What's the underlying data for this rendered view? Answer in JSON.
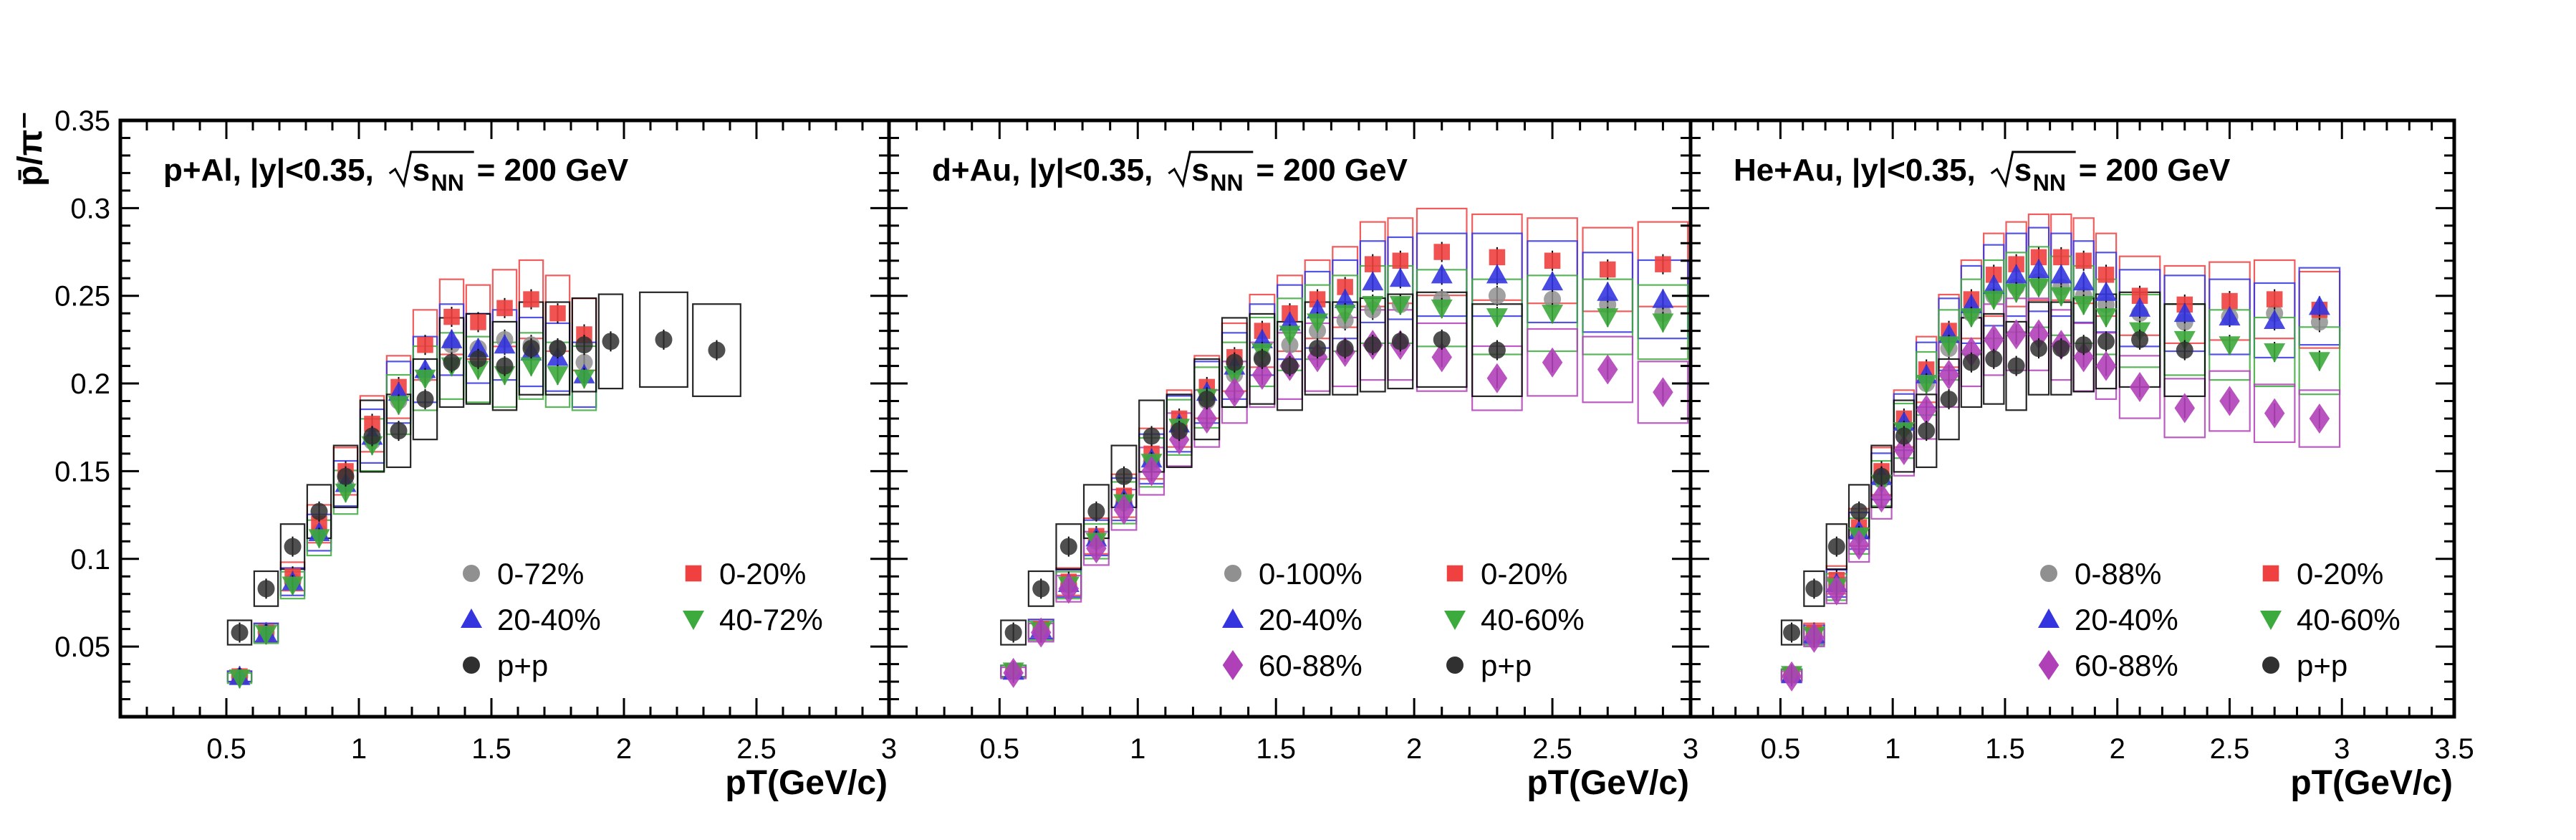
{
  "chart_data": {
    "type": "scatter",
    "ylabel": "p̄/π⁻",
    "xlabel": "pT(GeV/c)",
    "ylim": [
      0.01,
      0.35
    ],
    "yticks": [
      "0.05",
      "0.1",
      "0.15",
      "0.2",
      "0.25",
      "0.3",
      "0.35"
    ],
    "xticks": [
      "0.5",
      "1",
      "1.5",
      "2",
      "2.5",
      "3",
      "3.5"
    ],
    "xtick_labels_cut": [
      "0.5",
      "1",
      "1.5",
      "2",
      "2.5",
      "3",
      "3."
    ],
    "colors": {
      "red": "#f0403f",
      "blue": "#3535e0",
      "green": "#3caa3c",
      "magenta": "#b040b8",
      "black": "#303030",
      "gray": "#909090"
    },
    "panels": [
      {
        "title_prefix": "p+Al, |y|<0.35,",
        "title_s": "s",
        "title_sub": "NN",
        "title_suffix": "= 200 GeV",
        "xlim": [
          0.1,
          3.0
        ],
        "series": [
          {
            "name": "0-72%",
            "marker": "circle",
            "color": "gray",
            "x": [
              0.55,
              0.65,
              0.75,
              0.85,
              0.95,
              1.05,
              1.15,
              1.25,
              1.35,
              1.45,
              1.55,
              1.65,
              1.75,
              1.85
            ],
            "y": [
              0.033,
              0.058,
              0.087,
              0.115,
              0.142,
              0.167,
              0.19,
              0.205,
              0.222,
              0.22,
              0.225,
              0.222,
              0.22,
              0.212
            ]
          },
          {
            "name": "0-20%",
            "marker": "square",
            "color": "red",
            "x": [
              0.55,
              0.65,
              0.75,
              0.85,
              0.95,
              1.05,
              1.15,
              1.25,
              1.35,
              1.45,
              1.55,
              1.65,
              1.75,
              1.85
            ],
            "y": [
              0.033,
              0.058,
              0.09,
              0.12,
              0.15,
              0.177,
              0.198,
              0.222,
              0.238,
              0.235,
              0.243,
              0.248,
              0.24,
              0.228
            ]
          },
          {
            "name": "20-40%",
            "marker": "triangle-up",
            "color": "blue",
            "x": [
              0.55,
              0.65,
              0.75,
              0.85,
              0.95,
              1.05,
              1.15,
              1.25,
              1.35,
              1.45,
              1.55,
              1.65,
              1.75,
              1.85
            ],
            "y": [
              0.033,
              0.058,
              0.087,
              0.115,
              0.143,
              0.17,
              0.195,
              0.208,
              0.225,
              0.22,
              0.222,
              0.218,
              0.215,
              0.205
            ]
          },
          {
            "name": "40-72%",
            "marker": "triangle-down",
            "color": "green",
            "x": [
              0.55,
              0.65,
              0.75,
              0.85,
              0.95,
              1.05,
              1.15,
              1.25,
              1.35,
              1.45,
              1.55,
              1.65,
              1.75,
              1.85
            ],
            "y": [
              0.032,
              0.057,
              0.085,
              0.112,
              0.138,
              0.165,
              0.188,
              0.203,
              0.21,
              0.208,
              0.205,
              0.21,
              0.205,
              0.203
            ]
          },
          {
            "name": "p+p",
            "marker": "circle",
            "color": "black",
            "x": [
              0.55,
              0.65,
              0.75,
              0.85,
              0.95,
              1.05,
              1.15,
              1.25,
              1.35,
              1.45,
              1.55,
              1.65,
              1.75,
              1.85,
              1.95,
              2.15,
              2.35
            ],
            "y": [
              0.058,
              0.083,
              0.107,
              0.127,
              0.147,
              0.17,
              0.173,
              0.191,
              0.212,
              0.214,
              0.21,
              0.22,
              0.22,
              0.222,
              0.224,
              0.225,
              0.219
            ]
          }
        ],
        "legend": [
          [
            "0-72%",
            "0-20%"
          ],
          [
            "20-40%",
            "40-72%"
          ],
          [
            "p+p",
            ""
          ]
        ]
      },
      {
        "title_prefix": "d+Au, |y|<0.35,",
        "title_s": "s",
        "title_sub": "NN",
        "title_suffix": "= 200 GeV",
        "xlim": [
          0.1,
          3.0
        ],
        "series": [
          {
            "name": "0-100%",
            "marker": "circle",
            "color": "gray",
            "x": [
              0.55,
              0.65,
              0.75,
              0.85,
              0.95,
              1.05,
              1.15,
              1.25,
              1.35,
              1.45,
              1.55,
              1.65,
              1.75,
              1.85,
              1.95,
              2.1,
              2.3,
              2.5,
              2.7,
              2.9
            ],
            "y": [
              0.036,
              0.06,
              0.085,
              0.11,
              0.132,
              0.155,
              0.175,
              0.19,
              0.205,
              0.215,
              0.222,
              0.23,
              0.236,
              0.242,
              0.245,
              0.248,
              0.25,
              0.248,
              0.245,
              0.24
            ]
          },
          {
            "name": "0-20%",
            "marker": "square",
            "color": "red",
            "x": [
              0.55,
              0.65,
              0.75,
              0.85,
              0.95,
              1.05,
              1.15,
              1.25,
              1.35,
              1.45,
              1.55,
              1.65,
              1.75,
              1.85,
              1.95,
              2.1,
              2.3,
              2.5,
              2.7,
              2.9
            ],
            "y": [
              0.036,
              0.06,
              0.087,
              0.113,
              0.136,
              0.16,
              0.18,
              0.198,
              0.215,
              0.23,
              0.24,
              0.248,
              0.255,
              0.268,
              0.27,
              0.275,
              0.272,
              0.27,
              0.265,
              0.268
            ]
          },
          {
            "name": "20-40%",
            "marker": "triangle-up",
            "color": "blue",
            "x": [
              0.55,
              0.65,
              0.75,
              0.85,
              0.95,
              1.05,
              1.15,
              1.25,
              1.35,
              1.45,
              1.55,
              1.65,
              1.75,
              1.85,
              1.95,
              2.1,
              2.3,
              2.5,
              2.7,
              2.9
            ],
            "y": [
              0.036,
              0.06,
              0.086,
              0.112,
              0.134,
              0.157,
              0.177,
              0.195,
              0.21,
              0.225,
              0.235,
              0.242,
              0.248,
              0.258,
              0.26,
              0.262,
              0.262,
              0.258,
              0.252,
              0.248
            ]
          },
          {
            "name": "40-60%",
            "marker": "triangle-down",
            "color": "green",
            "x": [
              0.55,
              0.65,
              0.75,
              0.85,
              0.95,
              1.05,
              1.15,
              1.25,
              1.35,
              1.45,
              1.55,
              1.65,
              1.75,
              1.85,
              1.95,
              2.1,
              2.3,
              2.5,
              2.7,
              2.9
            ],
            "y": [
              0.036,
              0.059,
              0.085,
              0.11,
              0.132,
              0.155,
              0.175,
              0.192,
              0.205,
              0.218,
              0.228,
              0.235,
              0.24,
              0.245,
              0.245,
              0.243,
              0.238,
              0.24,
              0.238,
              0.235
            ]
          },
          {
            "name": "60-88%",
            "marker": "diamond",
            "color": "magenta",
            "x": [
              0.55,
              0.65,
              0.75,
              0.85,
              0.95,
              1.05,
              1.15,
              1.25,
              1.35,
              1.45,
              1.55,
              1.65,
              1.75,
              1.85,
              1.95,
              2.1,
              2.3,
              2.5,
              2.7,
              2.9
            ],
            "y": [
              0.035,
              0.058,
              0.083,
              0.106,
              0.128,
              0.15,
              0.168,
              0.18,
              0.195,
              0.205,
              0.21,
              0.215,
              0.218,
              0.222,
              0.222,
              0.215,
              0.203,
              0.212,
              0.208,
              0.195
            ]
          },
          {
            "name": "p+p",
            "marker": "circle",
            "color": "black",
            "x": [
              0.55,
              0.65,
              0.75,
              0.85,
              0.95,
              1.05,
              1.15,
              1.25,
              1.35,
              1.45,
              1.55,
              1.65,
              1.75,
              1.85,
              1.95,
              2.1,
              2.3
            ],
            "y": [
              0.058,
              0.083,
              0.107,
              0.127,
              0.147,
              0.17,
              0.173,
              0.191,
              0.212,
              0.214,
              0.21,
              0.22,
              0.22,
              0.222,
              0.224,
              0.225,
              0.219
            ]
          }
        ],
        "legend": [
          [
            "0-100%",
            "0-20%"
          ],
          [
            "20-40%",
            "40-60%"
          ],
          [
            "60-88%",
            "p+p"
          ]
        ]
      },
      {
        "title_prefix": "He+Au, |y|<0.35,",
        "title_s": "s",
        "title_sub": "NN",
        "title_suffix": "= 200 GeV",
        "xlim": [
          0.1,
          3.5
        ],
        "series": [
          {
            "name": "0-88%",
            "marker": "circle",
            "color": "gray",
            "x": [
              0.55,
              0.65,
              0.75,
              0.85,
              0.95,
              1.05,
              1.15,
              1.25,
              1.35,
              1.45,
              1.55,
              1.65,
              1.75,
              1.85,
              1.95,
              2.1,
              2.3,
              2.5,
              2.7,
              2.9
            ],
            "y": [
              0.034,
              0.057,
              0.085,
              0.115,
              0.145,
              0.175,
              0.2,
              0.22,
              0.24,
              0.25,
              0.255,
              0.258,
              0.255,
              0.25,
              0.245,
              0.24,
              0.235,
              0.238,
              0.24,
              0.235
            ]
          },
          {
            "name": "0-20%",
            "marker": "square",
            "color": "red",
            "x": [
              0.55,
              0.65,
              0.75,
              0.85,
              0.95,
              1.05,
              1.15,
              1.25,
              1.35,
              1.45,
              1.55,
              1.65,
              1.75,
              1.85,
              1.95,
              2.1,
              2.3,
              2.5,
              2.7,
              2.9
            ],
            "y": [
              0.034,
              0.058,
              0.088,
              0.118,
              0.15,
              0.18,
              0.208,
              0.23,
              0.248,
              0.262,
              0.268,
              0.272,
              0.272,
              0.27,
              0.262,
              0.25,
              0.245,
              0.247,
              0.248,
              0.242
            ]
          },
          {
            "name": "20-40%",
            "marker": "triangle-up",
            "color": "blue",
            "x": [
              0.55,
              0.65,
              0.75,
              0.85,
              0.95,
              1.05,
              1.15,
              1.25,
              1.35,
              1.45,
              1.55,
              1.65,
              1.75,
              1.85,
              1.95,
              2.1,
              2.3,
              2.5,
              2.7,
              2.9
            ],
            "y": [
              0.034,
              0.057,
              0.086,
              0.116,
              0.147,
              0.178,
              0.205,
              0.228,
              0.245,
              0.256,
              0.262,
              0.265,
              0.262,
              0.258,
              0.252,
              0.243,
              0.24,
              0.238,
              0.236,
              0.244
            ]
          },
          {
            "name": "40-60%",
            "marker": "triangle-down",
            "color": "green",
            "x": [
              0.55,
              0.65,
              0.75,
              0.85,
              0.95,
              1.05,
              1.15,
              1.25,
              1.35,
              1.45,
              1.55,
              1.65,
              1.75,
              1.85,
              1.95,
              2.1,
              2.3,
              2.5,
              2.7,
              2.9
            ],
            "y": [
              0.034,
              0.056,
              0.084,
              0.113,
              0.143,
              0.173,
              0.2,
              0.222,
              0.238,
              0.248,
              0.252,
              0.255,
              0.25,
              0.245,
              0.238,
              0.23,
              0.225,
              0.222,
              0.218,
              0.213
            ]
          },
          {
            "name": "60-88%",
            "marker": "diamond",
            "color": "magenta",
            "x": [
              0.55,
              0.65,
              0.75,
              0.85,
              0.95,
              1.05,
              1.15,
              1.25,
              1.35,
              1.45,
              1.55,
              1.65,
              1.75,
              1.85,
              1.95,
              2.1,
              2.3,
              2.5,
              2.7,
              2.9
            ],
            "y": [
              0.033,
              0.055,
              0.082,
              0.108,
              0.135,
              0.162,
              0.185,
              0.205,
              0.218,
              0.225,
              0.228,
              0.228,
              0.222,
              0.215,
              0.21,
              0.198,
              0.186,
              0.19,
              0.183,
              0.18
            ]
          },
          {
            "name": "p+p",
            "marker": "circle",
            "color": "black",
            "x": [
              0.55,
              0.65,
              0.75,
              0.85,
              0.95,
              1.05,
              1.15,
              1.25,
              1.35,
              1.45,
              1.55,
              1.65,
              1.75,
              1.85,
              1.95,
              2.1,
              2.3
            ],
            "y": [
              0.058,
              0.083,
              0.107,
              0.127,
              0.147,
              0.17,
              0.173,
              0.191,
              0.212,
              0.214,
              0.21,
              0.22,
              0.22,
              0.222,
              0.224,
              0.225,
              0.219
            ]
          }
        ],
        "legend": [
          [
            "0-88%",
            "0-20%"
          ],
          [
            "20-40%",
            "40-60%"
          ],
          [
            "60-88%",
            "p+p"
          ]
        ]
      }
    ]
  }
}
